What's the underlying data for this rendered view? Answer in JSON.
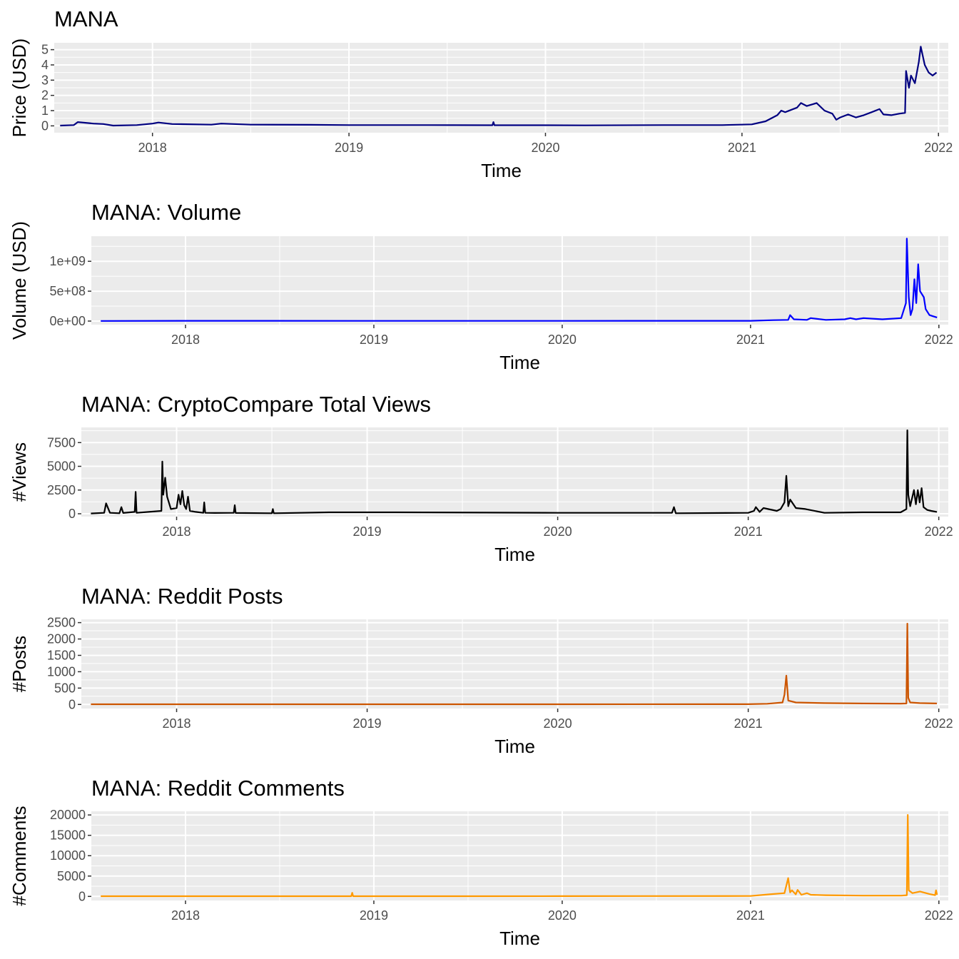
{
  "chart_data": [
    {
      "type": "line",
      "title": "MANA",
      "xlabel": "Time",
      "ylabel": "Price (USD)",
      "color": "#000080",
      "xlim": [
        2017.5,
        2022.05
      ],
      "ylim": [
        -0.45,
        5.45
      ],
      "xticks": [
        2018,
        2019,
        2020,
        2021,
        2022
      ],
      "xtick_labels": [
        "2018",
        "2019",
        "2020",
        "2021",
        "2022"
      ],
      "yticks": [
        0,
        1,
        2,
        3,
        4,
        5
      ],
      "ytick_labels": [
        "0",
        "1",
        "2",
        "3",
        "4",
        "5"
      ],
      "series": [
        {
          "x": [
            2017.53,
            2017.6,
            2017.62,
            2017.7,
            2017.75,
            2017.8,
            2017.92,
            2018.0,
            2018.03,
            2018.1,
            2018.3,
            2018.35,
            2018.5,
            2018.8,
            2019.0,
            2019.4,
            2019.73,
            2019.735,
            2019.74,
            2020.0,
            2020.2,
            2020.6,
            2020.9,
            2021.05,
            2021.12,
            2021.18,
            2021.2,
            2021.22,
            2021.28,
            2021.3,
            2021.33,
            2021.38,
            2021.42,
            2021.46,
            2021.48,
            2021.5,
            2021.54,
            2021.58,
            2021.62,
            2021.66,
            2021.7,
            2021.72,
            2021.76,
            2021.8,
            2021.83,
            2021.835,
            2021.85,
            2021.86,
            2021.88,
            2021.9,
            2021.91,
            2021.93,
            2021.95,
            2021.97,
            2021.99
          ],
          "y": [
            0.02,
            0.05,
            0.25,
            0.15,
            0.12,
            0.02,
            0.05,
            0.15,
            0.22,
            0.12,
            0.08,
            0.15,
            0.08,
            0.07,
            0.05,
            0.05,
            0.04,
            0.25,
            0.04,
            0.04,
            0.03,
            0.05,
            0.05,
            0.1,
            0.3,
            0.7,
            1.0,
            0.9,
            1.2,
            1.5,
            1.3,
            1.5,
            1.0,
            0.8,
            0.4,
            0.55,
            0.75,
            0.55,
            0.7,
            0.9,
            1.1,
            0.75,
            0.7,
            0.8,
            0.85,
            3.6,
            2.5,
            3.3,
            2.8,
            4.2,
            5.2,
            4.0,
            3.5,
            3.3,
            3.5
          ]
        }
      ]
    },
    {
      "type": "line",
      "title": "MANA: Volume",
      "xlabel": "Time",
      "ylabel": "Volume (USD)",
      "color": "#0000ff",
      "xlim": [
        2017.5,
        2022.05
      ],
      "ylim": [
        -60000000,
        1420000000
      ],
      "xticks": [
        2018,
        2019,
        2020,
        2021,
        2022
      ],
      "xtick_labels": [
        "2018",
        "2019",
        "2020",
        "2021",
        "2022"
      ],
      "yticks": [
        0,
        500000000,
        1000000000
      ],
      "ytick_labels": [
        "0e+00",
        "5e+08",
        "1e+09"
      ],
      "series": [
        {
          "x": [
            2017.55,
            2018.0,
            2019.0,
            2020.0,
            2021.0,
            2021.12,
            2021.2,
            2021.21,
            2021.23,
            2021.3,
            2021.32,
            2021.4,
            2021.5,
            2021.53,
            2021.56,
            2021.6,
            2021.7,
            2021.8,
            2021.825,
            2021.83,
            2021.84,
            2021.85,
            2021.86,
            2021.87,
            2021.88,
            2021.89,
            2021.9,
            2021.92,
            2021.93,
            2021.95,
            2021.97,
            2021.99
          ],
          "y": [
            2000000,
            5000000,
            3000000,
            3000000,
            5000000,
            15000000,
            20000000,
            100000000,
            30000000,
            20000000,
            50000000,
            20000000,
            30000000,
            50000000,
            30000000,
            50000000,
            30000000,
            50000000,
            300000000,
            1380000000,
            400000000,
            100000000,
            200000000,
            700000000,
            300000000,
            950000000,
            500000000,
            400000000,
            200000000,
            100000000,
            80000000,
            60000000
          ]
        }
      ]
    },
    {
      "type": "line",
      "title": "MANA: CryptoCompare Total Views",
      "xlabel": "Time",
      "ylabel": "#Views",
      "color": "#000000",
      "xlim": [
        2017.5,
        2022.05
      ],
      "ylim": [
        -300,
        9100
      ],
      "xticks": [
        2018,
        2019,
        2020,
        2021,
        2022
      ],
      "xtick_labels": [
        "2018",
        "2019",
        "2020",
        "2021",
        "2022"
      ],
      "yticks": [
        0,
        2500,
        5000,
        7500
      ],
      "ytick_labels": [
        "0",
        "2500",
        "5000",
        "7500"
      ],
      "series": [
        {
          "x": [
            2017.55,
            2017.62,
            2017.63,
            2017.65,
            2017.7,
            2017.71,
            2017.72,
            2017.78,
            2017.785,
            2017.79,
            2017.92,
            2017.925,
            2017.93,
            2017.94,
            2017.95,
            2017.97,
            2018.0,
            2018.01,
            2018.02,
            2018.03,
            2018.04,
            2018.05,
            2018.06,
            2018.07,
            2018.1,
            2018.14,
            2018.145,
            2018.15,
            2018.2,
            2018.3,
            2018.305,
            2018.31,
            2018.5,
            2018.505,
            2018.51,
            2018.8,
            2019.15,
            2020.0,
            2020.6,
            2020.61,
            2020.62,
            2021.0,
            2021.03,
            2021.04,
            2021.06,
            2021.08,
            2021.15,
            2021.17,
            2021.19,
            2021.2,
            2021.21,
            2021.22,
            2021.25,
            2021.3,
            2021.4,
            2021.6,
            2021.8,
            2021.83,
            2021.835,
            2021.84,
            2021.85,
            2021.87,
            2021.88,
            2021.89,
            2021.9,
            2021.91,
            2021.92,
            2021.94,
            2021.96,
            2021.99
          ],
          "y": [
            30,
            100,
            1100,
            100,
            50,
            700,
            80,
            200,
            2300,
            100,
            300,
            5500,
            2000,
            3800,
            1800,
            500,
            600,
            2000,
            1000,
            2400,
            900,
            500,
            1800,
            300,
            200,
            100,
            1200,
            100,
            80,
            100,
            900,
            80,
            50,
            500,
            50,
            150,
            150,
            100,
            100,
            700,
            50,
            100,
            300,
            700,
            200,
            600,
            300,
            500,
            1200,
            4000,
            800,
            1500,
            600,
            500,
            100,
            150,
            150,
            500,
            8800,
            2000,
            800,
            2500,
            1000,
            2500,
            1200,
            2700,
            700,
            400,
            300,
            200
          ]
        }
      ]
    },
    {
      "type": "line",
      "title": "MANA: Reddit Posts",
      "xlabel": "Time",
      "ylabel": "#Posts",
      "color": "#cc5500",
      "xlim": [
        2017.5,
        2022.05
      ],
      "ylim": [
        -125,
        2600
      ],
      "xticks": [
        2018,
        2019,
        2020,
        2021,
        2022
      ],
      "xtick_labels": [
        "2018",
        "2019",
        "2020",
        "2021",
        "2022"
      ],
      "yticks": [
        0,
        500,
        1000,
        1500,
        2000,
        2500
      ],
      "ytick_labels": [
        "0",
        "500",
        "1000",
        "1500",
        "2000",
        "2500"
      ],
      "series": [
        {
          "x": [
            2017.55,
            2018.0,
            2019.0,
            2020.0,
            2021.0,
            2021.1,
            2021.18,
            2021.19,
            2021.2,
            2021.21,
            2021.25,
            2021.4,
            2021.6,
            2021.8,
            2021.83,
            2021.835,
            2021.84,
            2021.85,
            2021.9,
            2021.99
          ],
          "y": [
            5,
            5,
            5,
            5,
            8,
            20,
            60,
            300,
            880,
            120,
            60,
            40,
            30,
            25,
            30,
            2470,
            200,
            60,
            40,
            30
          ]
        }
      ]
    },
    {
      "type": "line",
      "title": "MANA: Reddit Comments",
      "xlabel": "Time",
      "ylabel": "#Comments",
      "color": "#ff9900",
      "xlim": [
        2017.5,
        2022.05
      ],
      "ylim": [
        -1000,
        20900
      ],
      "xticks": [
        2018,
        2019,
        2020,
        2021,
        2022
      ],
      "xtick_labels": [
        "2018",
        "2019",
        "2020",
        "2021",
        "2022"
      ],
      "yticks": [
        0,
        5000,
        10000,
        15000,
        20000
      ],
      "ytick_labels": [
        "0",
        "5000",
        "10000",
        "15000",
        "20000"
      ],
      "series": [
        {
          "x": [
            2017.55,
            2018.0,
            2018.88,
            2018.885,
            2018.89,
            2019.5,
            2020.0,
            2021.0,
            2021.1,
            2021.18,
            2021.2,
            2021.21,
            2021.22,
            2021.24,
            2021.25,
            2021.27,
            2021.3,
            2021.32,
            2021.4,
            2021.6,
            2021.8,
            2021.83,
            2021.835,
            2021.84,
            2021.86,
            2021.9,
            2021.95,
            2021.98,
            2021.985,
            2021.99
          ],
          "y": [
            50,
            50,
            50,
            900,
            50,
            50,
            60,
            100,
            500,
            800,
            4500,
            1000,
            1500,
            500,
            1600,
            400,
            800,
            400,
            300,
            200,
            200,
            300,
            20000,
            1500,
            800,
            1200,
            600,
            300,
            1500,
            400
          ]
        }
      ]
    }
  ]
}
